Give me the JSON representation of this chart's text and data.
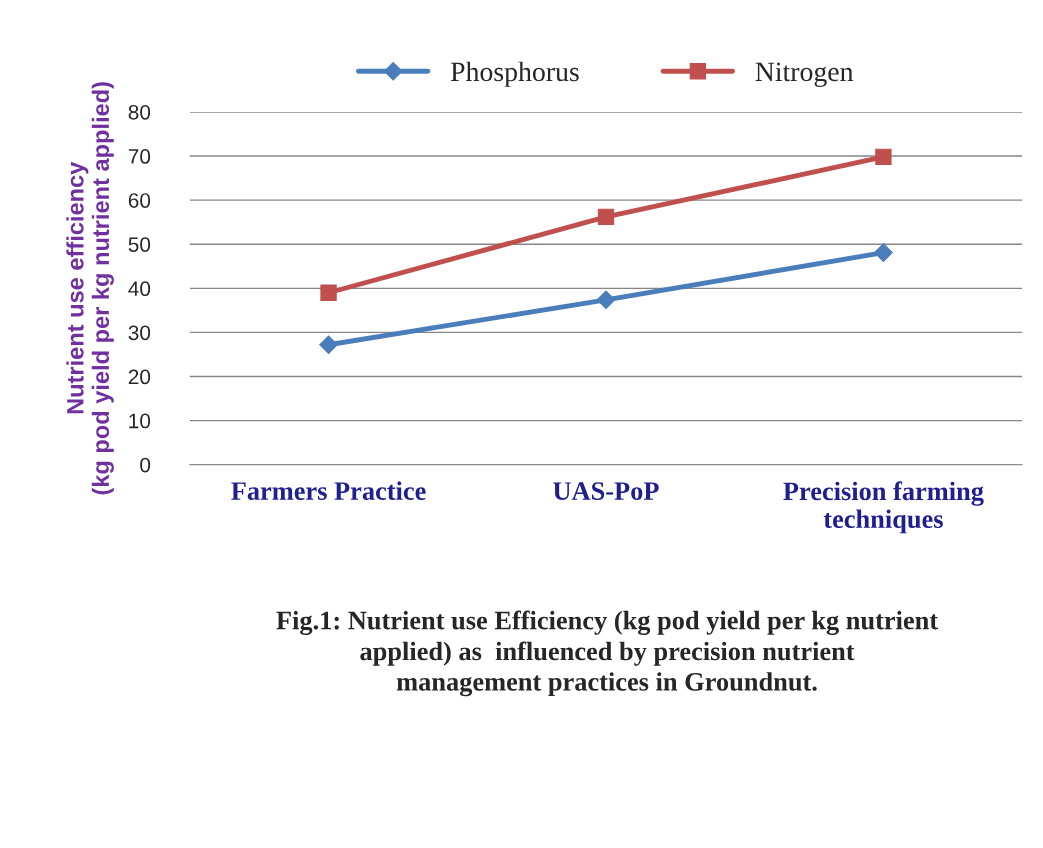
{
  "chart_data": {
    "type": "line",
    "categories": [
      "Farmers Practice",
      "UAS-PoP",
      "Precision farming\ntechniques"
    ],
    "series": [
      {
        "name": "Phosphorus",
        "color": "#4a7ebb",
        "marker": "diamond",
        "values": [
          27.2,
          37.4,
          48.1
        ]
      },
      {
        "name": "Nitrogen",
        "color": "#c0504d",
        "marker": "square",
        "values": [
          39.0,
          56.2,
          69.8
        ]
      }
    ],
    "ylabel": "Nutrient use efficiency\n(kg pod yield per kg nutrient applied)",
    "ylim": [
      0,
      80
    ],
    "yticks": [
      0,
      10,
      20,
      30,
      40,
      50,
      60,
      70,
      80
    ],
    "grid": "y",
    "legend": "top",
    "annotations": [
      "Fig.1: Nutrient use Efficiency (kg pod yield per kg nutrient\napplied) as  influenced by precision nutrient\nmanagement practices in Groundnut."
    ]
  }
}
